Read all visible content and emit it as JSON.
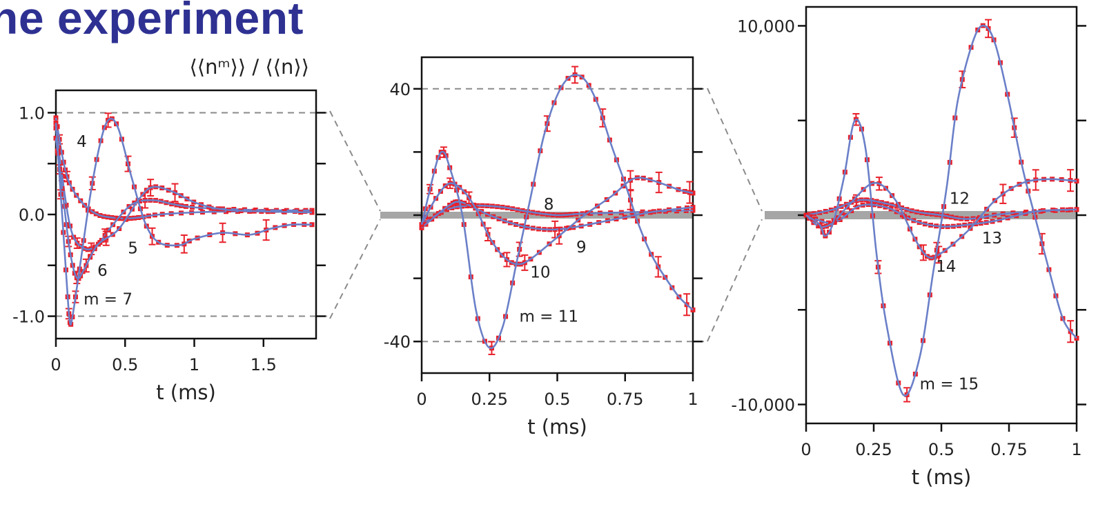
{
  "page": {
    "heading": "he experiment"
  },
  "colors": {
    "fit_curve": "#6a7fc8",
    "data_marker": "#e8202a",
    "guide": "#8a8a8a",
    "band": "#a6a6a6",
    "heading": "#2e3192"
  },
  "chart_data": [
    {
      "type": "line",
      "panel": "left",
      "ylabel": "⟨⟨nᵐ⟩⟩ / ⟨⟨n⟩⟩",
      "xlabel": "t (ms)",
      "xlim": [
        0,
        1.88
      ],
      "ylim": [
        -1.22,
        1.22
      ],
      "x_ticks": [
        0,
        0.5,
        1,
        1.5
      ],
      "x_tick_labels": [
        "0",
        "0.5",
        "1",
        "1.5"
      ],
      "y_ticks": [
        -1.0,
        -0.5,
        0.0,
        0.5,
        1.0
      ],
      "y_tick_labels": [
        "-1.0",
        "",
        "0.0",
        "",
        "1.0"
      ],
      "guides": [
        1.0,
        -1.0
      ],
      "series": [
        {
          "label": "4",
          "points": [
            [
              0,
              0.95
            ],
            [
              0.05,
              0.55
            ],
            [
              0.1,
              0.3
            ],
            [
              0.2,
              0.1
            ],
            [
              0.3,
              0.0
            ],
            [
              0.4,
              -0.03
            ],
            [
              0.5,
              -0.04
            ],
            [
              0.6,
              -0.03
            ],
            [
              0.75,
              0.0
            ],
            [
              1.0,
              0.02
            ],
            [
              1.3,
              0.03
            ],
            [
              1.6,
              0.03
            ],
            [
              1.85,
              0.03
            ]
          ],
          "label_pos": [
            0.15,
            0.72
          ]
        },
        {
          "label": "5",
          "points": [
            [
              0,
              0.85
            ],
            [
              0.1,
              -0.1
            ],
            [
              0.2,
              -0.33
            ],
            [
              0.3,
              -0.3
            ],
            [
              0.4,
              -0.12
            ],
            [
              0.55,
              0.1
            ],
            [
              0.7,
              0.14
            ],
            [
              0.85,
              0.1
            ],
            [
              1.0,
              0.07
            ],
            [
              1.3,
              0.05
            ],
            [
              1.6,
              0.04
            ],
            [
              1.85,
              0.04
            ]
          ],
          "label_pos": [
            0.52,
            -0.33
          ]
        },
        {
          "label": "6",
          "points": [
            [
              0,
              0.75
            ],
            [
              0.05,
              0.2
            ],
            [
              0.1,
              -0.35
            ],
            [
              0.15,
              -0.62
            ],
            [
              0.2,
              -0.55
            ],
            [
              0.3,
              -0.3
            ],
            [
              0.45,
              -0.15
            ],
            [
              0.6,
              0.15
            ],
            [
              0.7,
              0.27
            ],
            [
              0.85,
              0.22
            ],
            [
              1.0,
              0.12
            ],
            [
              1.2,
              0.05
            ],
            [
              1.5,
              0.03
            ],
            [
              1.85,
              0.02
            ]
          ],
          "label_pos": [
            0.3,
            -0.55
          ]
        },
        {
          "label": "m = 7",
          "points": [
            [
              0,
              0.9
            ],
            [
              0.04,
              0.1
            ],
            [
              0.08,
              -0.7
            ],
            [
              0.1,
              -1.05
            ],
            [
              0.12,
              -1.0
            ],
            [
              0.18,
              -0.45
            ],
            [
              0.25,
              0.2
            ],
            [
              0.32,
              0.7
            ],
            [
              0.38,
              0.93
            ],
            [
              0.45,
              0.85
            ],
            [
              0.55,
              0.35
            ],
            [
              0.65,
              -0.1
            ],
            [
              0.75,
              -0.28
            ],
            [
              0.9,
              -0.3
            ],
            [
              1.0,
              -0.24
            ],
            [
              1.2,
              -0.18
            ],
            [
              1.4,
              -0.2
            ],
            [
              1.55,
              -0.14
            ],
            [
              1.7,
              -0.1
            ],
            [
              1.85,
              -0.1
            ]
          ],
          "label_pos": [
            0.2,
            -0.83
          ]
        }
      ]
    },
    {
      "type": "line",
      "panel": "middle",
      "xlabel": "t (ms)",
      "xlim": [
        0,
        1
      ],
      "ylim": [
        -50,
        50
      ],
      "x_ticks": [
        0,
        0.25,
        0.5,
        0.75,
        1
      ],
      "x_tick_labels": [
        "0",
        "0.25",
        "0.5",
        "0.75",
        "1"
      ],
      "y_ticks": [
        -40,
        -20,
        0,
        20,
        40
      ],
      "y_tick_labels": [
        "-40",
        "",
        "",
        "",
        "40"
      ],
      "guides": [
        40,
        -40
      ],
      "series": [
        {
          "label": "8",
          "points": [
            [
              0,
              -3
            ],
            [
              0.1,
              2
            ],
            [
              0.2,
              3
            ],
            [
              0.3,
              2.5
            ],
            [
              0.4,
              1
            ],
            [
              0.5,
              0
            ],
            [
              0.6,
              0.5
            ],
            [
              0.8,
              1
            ],
            [
              1.0,
              1.5
            ]
          ],
          "label_pos": [
            0.45,
            3.5
          ]
        },
        {
          "label": "9",
          "points": [
            [
              0,
              -4
            ],
            [
              0.1,
              3
            ],
            [
              0.15,
              4
            ],
            [
              0.25,
              0
            ],
            [
              0.35,
              -3
            ],
            [
              0.45,
              -4.5
            ],
            [
              0.55,
              -4
            ],
            [
              0.7,
              -1.5
            ],
            [
              0.85,
              1
            ],
            [
              1.0,
              2.5
            ]
          ],
          "label_pos": [
            0.57,
            -10
          ]
        },
        {
          "label": "10",
          "points": [
            [
              0,
              -3
            ],
            [
              0.05,
              5
            ],
            [
              0.1,
              10
            ],
            [
              0.15,
              8
            ],
            [
              0.2,
              2
            ],
            [
              0.25,
              -7
            ],
            [
              0.3,
              -13
            ],
            [
              0.35,
              -15.5
            ],
            [
              0.4,
              -14
            ],
            [
              0.5,
              -7
            ],
            [
              0.6,
              0
            ],
            [
              0.7,
              6
            ],
            [
              0.78,
              11.5
            ],
            [
              0.85,
              11
            ],
            [
              0.95,
              8
            ],
            [
              1.0,
              7
            ]
          ],
          "label_pos": [
            0.4,
            -18
          ]
        },
        {
          "label": "m = 11",
          "points": [
            [
              0,
              -3
            ],
            [
              0.03,
              8
            ],
            [
              0.06,
              18
            ],
            [
              0.08,
              20
            ],
            [
              0.1,
              16
            ],
            [
              0.15,
              0
            ],
            [
              0.2,
              -30
            ],
            [
              0.25,
              -42
            ],
            [
              0.3,
              -35
            ],
            [
              0.35,
              -15
            ],
            [
              0.4,
              5
            ],
            [
              0.45,
              25
            ],
            [
              0.5,
              38
            ],
            [
              0.55,
              44
            ],
            [
              0.6,
              43
            ],
            [
              0.65,
              35
            ],
            [
              0.7,
              22
            ],
            [
              0.75,
              10
            ],
            [
              0.8,
              -3
            ],
            [
              0.85,
              -13
            ],
            [
              0.9,
              -20
            ],
            [
              0.95,
              -26
            ],
            [
              1.0,
              -30
            ]
          ],
          "label_pos": [
            0.36,
            -32
          ]
        }
      ]
    },
    {
      "type": "line",
      "panel": "right",
      "xlabel": "t (ms)",
      "xlim": [
        0,
        1
      ],
      "ylim": [
        -11000,
        11000
      ],
      "x_ticks": [
        0,
        0.25,
        0.5,
        0.75,
        1
      ],
      "x_tick_labels": [
        "0",
        "0.25",
        "0.5",
        "0.75",
        "1"
      ],
      "y_ticks": [
        -10000,
        -5000,
        0,
        5000,
        10000
      ],
      "y_tick_labels": [
        "-10,000",
        "",
        "",
        "",
        "10,000"
      ],
      "guides": [],
      "series": [
        {
          "label": "12",
          "points": [
            [
              0,
              0
            ],
            [
              0.1,
              300
            ],
            [
              0.2,
              800
            ],
            [
              0.3,
              600
            ],
            [
              0.4,
              200
            ],
            [
              0.5,
              0
            ],
            [
              0.6,
              -200
            ],
            [
              0.75,
              100
            ],
            [
              1.0,
              300
            ]
          ],
          "label_pos": [
            0.53,
            900
          ]
        },
        {
          "label": "13",
          "points": [
            [
              0,
              0
            ],
            [
              0.1,
              -400
            ],
            [
              0.2,
              500
            ],
            [
              0.3,
              400
            ],
            [
              0.4,
              -300
            ],
            [
              0.5,
              -600
            ],
            [
              0.6,
              -500
            ],
            [
              0.7,
              -300
            ],
            [
              0.85,
              200
            ],
            [
              1.0,
              300
            ]
          ],
          "label_pos": [
            0.65,
            -1200
          ]
        },
        {
          "label": "14",
          "points": [
            [
              0,
              0
            ],
            [
              0.05,
              -600
            ],
            [
              0.1,
              -400
            ],
            [
              0.15,
              400
            ],
            [
              0.25,
              1700
            ],
            [
              0.33,
              800
            ],
            [
              0.4,
              -1200
            ],
            [
              0.45,
              -2200
            ],
            [
              0.5,
              -2000
            ],
            [
              0.6,
              -800
            ],
            [
              0.7,
              800
            ],
            [
              0.8,
              1700
            ],
            [
              0.9,
              1900
            ],
            [
              1.0,
              1800
            ]
          ],
          "label_pos": [
            0.48,
            -2700
          ]
        },
        {
          "label": "m = 15",
          "points": [
            [
              0,
              0
            ],
            [
              0.05,
              -500
            ],
            [
              0.07,
              -1100
            ],
            [
              0.1,
              -400
            ],
            [
              0.14,
              2000
            ],
            [
              0.18,
              5000
            ],
            [
              0.22,
              3500
            ],
            [
              0.26,
              -2000
            ],
            [
              0.3,
              -6000
            ],
            [
              0.36,
              -9500
            ],
            [
              0.42,
              -7500
            ],
            [
              0.47,
              -3000
            ],
            [
              0.52,
              1500
            ],
            [
              0.56,
              6000
            ],
            [
              0.62,
              9300
            ],
            [
              0.66,
              10000
            ],
            [
              0.7,
              9000
            ],
            [
              0.75,
              6000
            ],
            [
              0.8,
              2500
            ],
            [
              0.85,
              -300
            ],
            [
              0.9,
              -3000
            ],
            [
              0.95,
              -5500
            ],
            [
              1.0,
              -6500
            ]
          ],
          "label_pos": [
            0.42,
            -8900
          ]
        }
      ]
    }
  ]
}
